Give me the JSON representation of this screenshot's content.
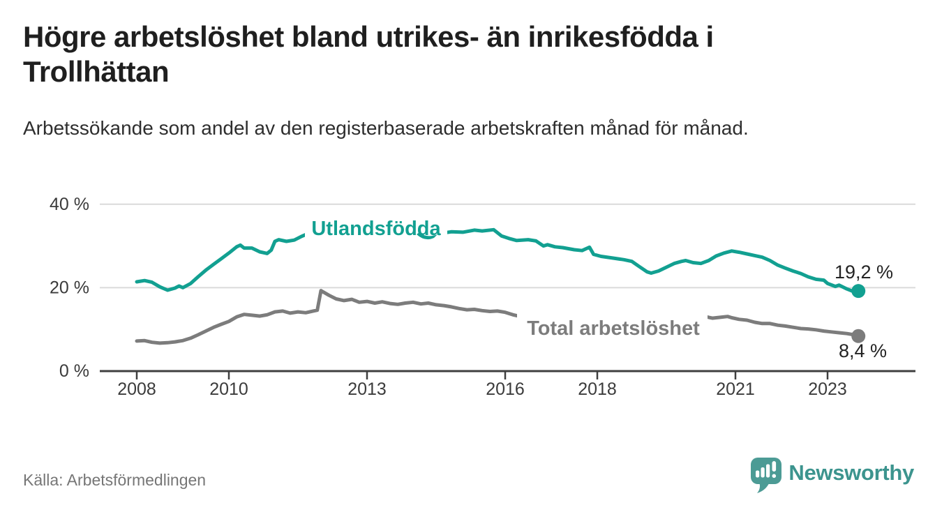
{
  "header": {
    "title": "Högre arbetslöshet bland utrikes- än inrikesfödda i Trollhättan",
    "subtitle": "Arbetssökande som andel av den registerbaserade arbetskraften månad för månad."
  },
  "chart_data": {
    "type": "line",
    "unit": "%",
    "grid": true,
    "xlim": [
      2008,
      2024.3
    ],
    "ylim": [
      0,
      40
    ],
    "x_ticks": [
      "2008",
      "2010",
      "2013",
      "2016",
      "2018",
      "2021",
      "2023"
    ],
    "x_tick_years": [
      2008,
      2010,
      2013,
      2016,
      2018,
      2021,
      2023
    ],
    "y_ticks": [
      {
        "value": 0,
        "label": "0 %"
      },
      {
        "value": 20,
        "label": "20 %"
      },
      {
        "value": 40,
        "label": "40 %"
      }
    ],
    "series": [
      {
        "name": "Utlandsfödda",
        "color": "#12a091",
        "end_value": 19.2,
        "end_label": "19,2 %",
        "points": [
          [
            2008.0,
            21.4
          ],
          [
            2008.17,
            21.7
          ],
          [
            2008.33,
            21.3
          ],
          [
            2008.5,
            20.2
          ],
          [
            2008.67,
            19.4
          ],
          [
            2008.83,
            19.9
          ],
          [
            2008.92,
            20.4
          ],
          [
            2009.0,
            20.0
          ],
          [
            2009.17,
            21.0
          ],
          [
            2009.33,
            22.6
          ],
          [
            2009.5,
            24.2
          ],
          [
            2009.67,
            25.6
          ],
          [
            2009.83,
            26.9
          ],
          [
            2010.0,
            28.3
          ],
          [
            2010.17,
            29.8
          ],
          [
            2010.25,
            30.2
          ],
          [
            2010.33,
            29.5
          ],
          [
            2010.5,
            29.5
          ],
          [
            2010.67,
            28.6
          ],
          [
            2010.83,
            28.2
          ],
          [
            2010.92,
            29.0
          ],
          [
            2011.0,
            31.1
          ],
          [
            2011.08,
            31.5
          ],
          [
            2011.25,
            31.1
          ],
          [
            2011.42,
            31.4
          ],
          [
            2011.58,
            32.3
          ],
          [
            2011.75,
            33.1
          ],
          [
            2011.92,
            33.4
          ],
          [
            2012.17,
            33.5
          ],
          [
            2012.42,
            33.3
          ],
          [
            2012.67,
            33.6
          ],
          [
            2012.92,
            33.4
          ],
          [
            2013.25,
            33.5
          ],
          [
            2013.58,
            33.4
          ],
          [
            2013.92,
            33.6
          ],
          [
            2014.08,
            33.1
          ],
          [
            2014.33,
            32.6
          ],
          [
            2014.58,
            33.0
          ],
          [
            2014.83,
            33.4
          ],
          [
            2015.08,
            33.3
          ],
          [
            2015.33,
            33.8
          ],
          [
            2015.5,
            33.6
          ],
          [
            2015.75,
            33.9
          ],
          [
            2015.92,
            32.4
          ],
          [
            2016.08,
            31.8
          ],
          [
            2016.25,
            31.3
          ],
          [
            2016.5,
            31.5
          ],
          [
            2016.67,
            31.2
          ],
          [
            2016.83,
            30.0
          ],
          [
            2016.92,
            30.3
          ],
          [
            2017.08,
            29.8
          ],
          [
            2017.25,
            29.6
          ],
          [
            2017.5,
            29.1
          ],
          [
            2017.67,
            28.9
          ],
          [
            2017.83,
            29.7
          ],
          [
            2017.92,
            28.0
          ],
          [
            2018.08,
            27.5
          ],
          [
            2018.33,
            27.1
          ],
          [
            2018.58,
            26.7
          ],
          [
            2018.75,
            26.3
          ],
          [
            2018.92,
            25.0
          ],
          [
            2019.08,
            23.8
          ],
          [
            2019.17,
            23.5
          ],
          [
            2019.33,
            24.0
          ],
          [
            2019.5,
            24.9
          ],
          [
            2019.67,
            25.8
          ],
          [
            2019.83,
            26.3
          ],
          [
            2019.92,
            26.5
          ],
          [
            2020.08,
            26.0
          ],
          [
            2020.25,
            25.8
          ],
          [
            2020.42,
            26.5
          ],
          [
            2020.58,
            27.6
          ],
          [
            2020.75,
            28.3
          ],
          [
            2020.92,
            28.8
          ],
          [
            2021.08,
            28.5
          ],
          [
            2021.25,
            28.1
          ],
          [
            2021.42,
            27.7
          ],
          [
            2021.58,
            27.3
          ],
          [
            2021.75,
            26.5
          ],
          [
            2021.92,
            25.4
          ],
          [
            2022.08,
            24.7
          ],
          [
            2022.25,
            24.0
          ],
          [
            2022.42,
            23.4
          ],
          [
            2022.58,
            22.6
          ],
          [
            2022.75,
            22.0
          ],
          [
            2022.92,
            21.8
          ],
          [
            2023.0,
            21.0
          ],
          [
            2023.17,
            20.3
          ],
          [
            2023.25,
            20.6
          ],
          [
            2023.42,
            19.7
          ],
          [
            2023.58,
            19.0
          ],
          [
            2023.67,
            19.2
          ]
        ]
      },
      {
        "name": "Total arbetslöshet",
        "color": "#7c7c7c",
        "end_value": 8.4,
        "end_label": "8,4 %",
        "points": [
          [
            2008.0,
            7.2
          ],
          [
            2008.17,
            7.3
          ],
          [
            2008.33,
            6.9
          ],
          [
            2008.5,
            6.7
          ],
          [
            2008.67,
            6.8
          ],
          [
            2008.83,
            7.0
          ],
          [
            2009.0,
            7.3
          ],
          [
            2009.17,
            7.9
          ],
          [
            2009.33,
            8.7
          ],
          [
            2009.5,
            9.6
          ],
          [
            2009.67,
            10.5
          ],
          [
            2009.83,
            11.2
          ],
          [
            2010.0,
            11.9
          ],
          [
            2010.17,
            13.0
          ],
          [
            2010.33,
            13.6
          ],
          [
            2010.5,
            13.4
          ],
          [
            2010.67,
            13.2
          ],
          [
            2010.83,
            13.5
          ],
          [
            2011.0,
            14.2
          ],
          [
            2011.17,
            14.4
          ],
          [
            2011.33,
            13.9
          ],
          [
            2011.5,
            14.2
          ],
          [
            2011.67,
            14.0
          ],
          [
            2011.83,
            14.4
          ],
          [
            2011.92,
            14.6
          ],
          [
            2012.0,
            19.3
          ],
          [
            2012.17,
            18.2
          ],
          [
            2012.33,
            17.3
          ],
          [
            2012.5,
            16.9
          ],
          [
            2012.67,
            17.2
          ],
          [
            2012.83,
            16.5
          ],
          [
            2013.0,
            16.7
          ],
          [
            2013.17,
            16.3
          ],
          [
            2013.33,
            16.6
          ],
          [
            2013.5,
            16.2
          ],
          [
            2013.67,
            16.0
          ],
          [
            2013.83,
            16.3
          ],
          [
            2014.0,
            16.5
          ],
          [
            2014.17,
            16.1
          ],
          [
            2014.33,
            16.3
          ],
          [
            2014.5,
            15.9
          ],
          [
            2014.67,
            15.7
          ],
          [
            2014.83,
            15.4
          ],
          [
            2015.0,
            15.0
          ],
          [
            2015.17,
            14.7
          ],
          [
            2015.33,
            14.8
          ],
          [
            2015.5,
            14.5
          ],
          [
            2015.67,
            14.3
          ],
          [
            2015.83,
            14.4
          ],
          [
            2016.0,
            14.1
          ],
          [
            2016.17,
            13.5
          ],
          [
            2016.33,
            13.1
          ],
          [
            2016.5,
            12.8
          ],
          [
            2016.75,
            12.5
          ],
          [
            2017.0,
            12.3
          ],
          [
            2017.5,
            12.0
          ],
          [
            2018.0,
            11.7
          ],
          [
            2018.5,
            11.4
          ],
          [
            2019.0,
            11.2
          ],
          [
            2019.5,
            11.3
          ],
          [
            2019.92,
            11.8
          ],
          [
            2020.17,
            12.8
          ],
          [
            2020.33,
            13.1
          ],
          [
            2020.5,
            12.7
          ],
          [
            2020.67,
            12.9
          ],
          [
            2020.83,
            13.1
          ],
          [
            2020.92,
            12.8
          ],
          [
            2021.08,
            12.4
          ],
          [
            2021.25,
            12.2
          ],
          [
            2021.42,
            11.7
          ],
          [
            2021.58,
            11.4
          ],
          [
            2021.75,
            11.4
          ],
          [
            2021.92,
            11.0
          ],
          [
            2022.08,
            10.8
          ],
          [
            2022.25,
            10.5
          ],
          [
            2022.42,
            10.2
          ],
          [
            2022.58,
            10.1
          ],
          [
            2022.75,
            9.9
          ],
          [
            2022.92,
            9.6
          ],
          [
            2023.08,
            9.4
          ],
          [
            2023.25,
            9.2
          ],
          [
            2023.42,
            9.0
          ],
          [
            2023.58,
            8.7
          ],
          [
            2023.67,
            8.4
          ]
        ]
      }
    ],
    "title": "Högre arbetslöshet bland utrikes- än inrikesfödda i Trollhättan",
    "xlabel": "",
    "ylabel": "%"
  },
  "footer": {
    "source": "Källa: Arbetsförmedlingen",
    "logo_text": "Newsworthy"
  },
  "colors": {
    "series_foreign_born": "#12a091",
    "series_total": "#7c7c7c",
    "axis": "#3f3f3f",
    "gridline": "#dadada",
    "annotation_text": "#232323",
    "logo_teal": "#4c9b95"
  }
}
